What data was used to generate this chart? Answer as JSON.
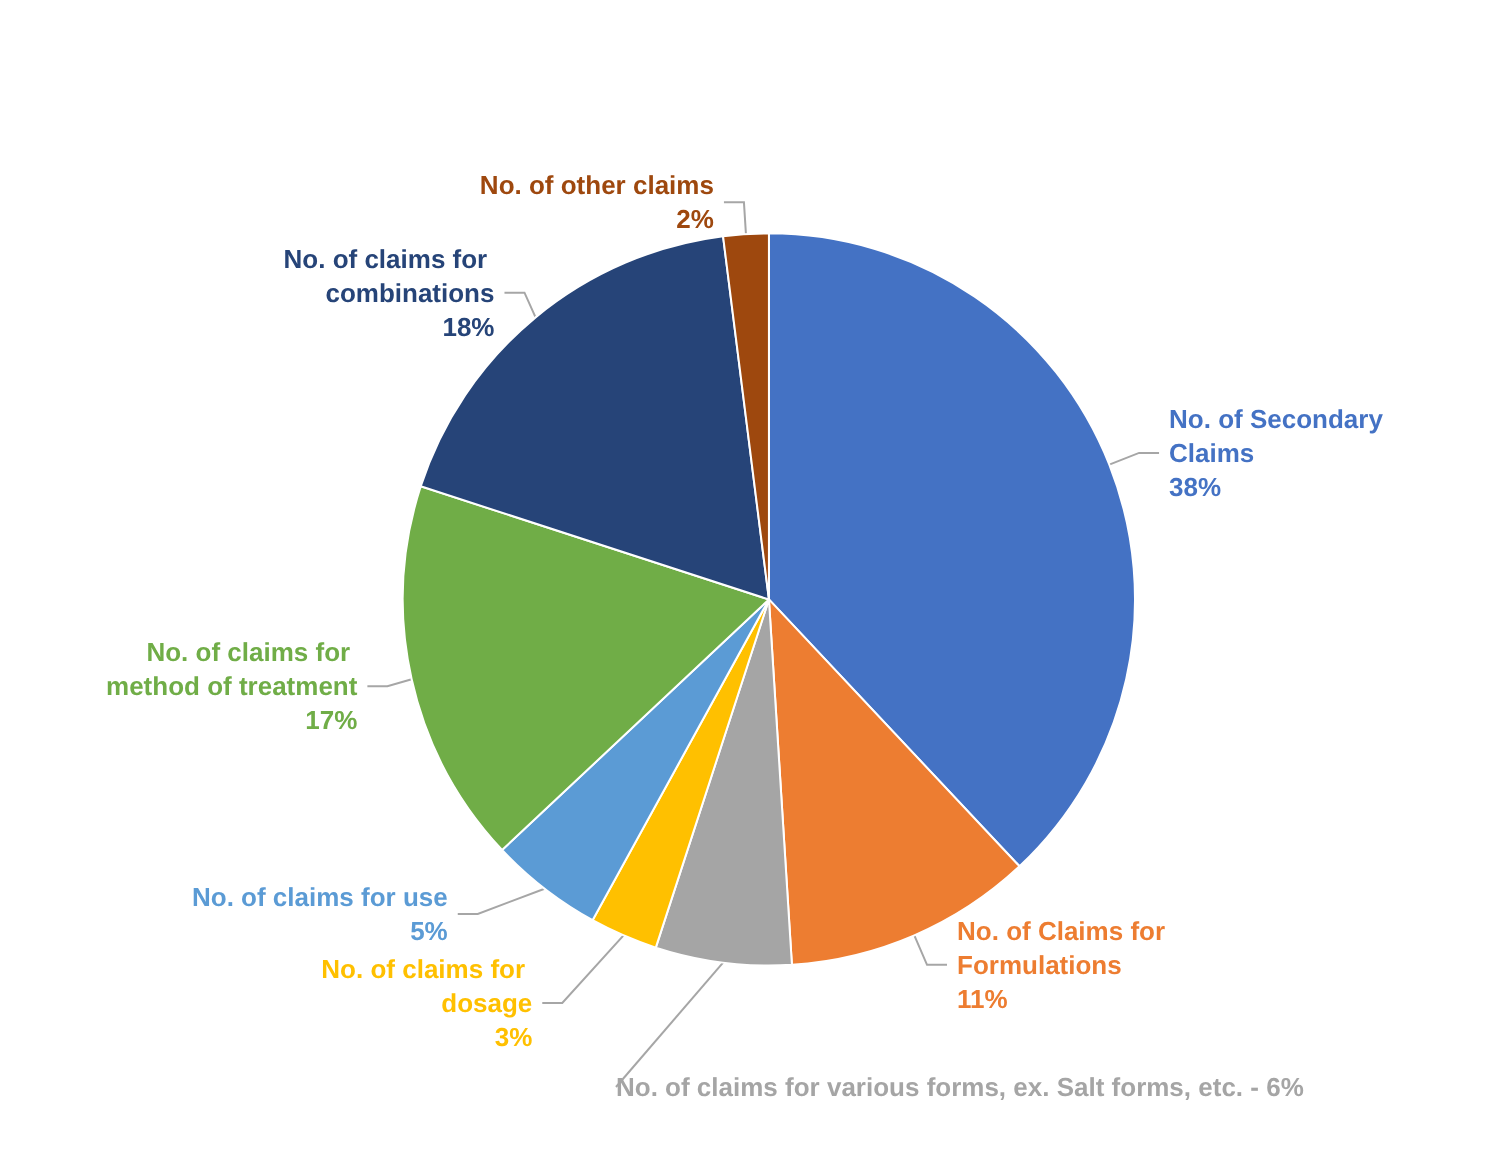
{
  "chart_data": {
    "type": "pie",
    "categories": [
      "No. of Secondary Claims",
      "No. of Claims for Formulations",
      "No. of claims for various forms, ex. Salt forms, etc. -",
      "No. of claims for dosage",
      "No. of claims for use",
      "No. of claims for method of treatment",
      "No. of claims for combinations",
      "No. of other claims"
    ],
    "values": [
      38,
      11,
      6,
      3,
      5,
      17,
      18,
      2
    ],
    "value_labels": [
      "38%",
      "11%",
      "6%",
      "3%",
      "5%",
      "17%",
      "18%",
      "2%"
    ],
    "colors": [
      "#4472c4",
      "#ed7d31",
      "#a5a5a5",
      "#ffc000",
      "#5b9bd5",
      "#70ad47",
      "#264478",
      "#9e480e"
    ],
    "data_labels": true,
    "legend": false
  }
}
